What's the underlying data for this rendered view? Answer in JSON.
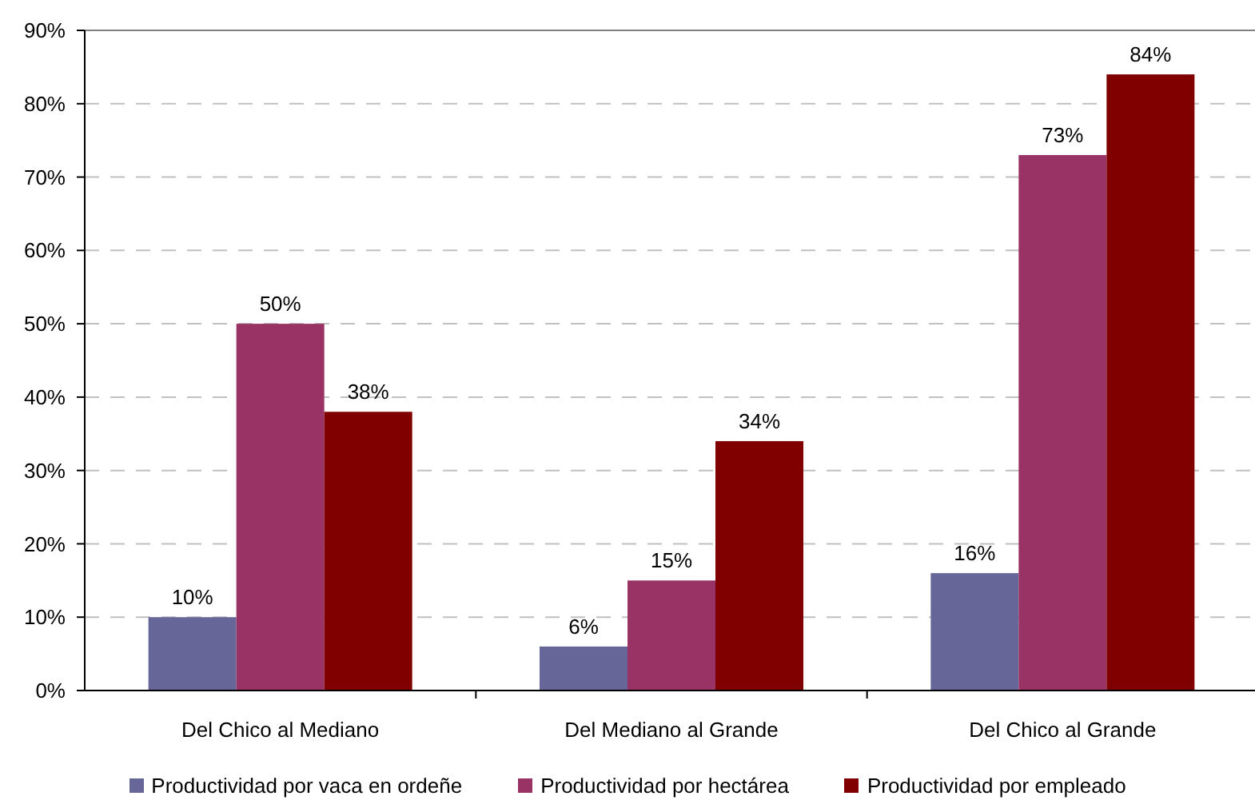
{
  "chart_data": {
    "type": "bar",
    "categories": [
      "Del Chico al Mediano",
      "Del Mediano al Grande",
      "Del Chico al Grande"
    ],
    "series": [
      {
        "name": "Productividad por vaca en ordeñe",
        "color": "#666699",
        "values": [
          10,
          6,
          16
        ],
        "value_labels": [
          "10%",
          "6%",
          "16%"
        ]
      },
      {
        "name": "Productividad por hectárea",
        "color": "#993366",
        "values": [
          50,
          15,
          73
        ],
        "value_labels": [
          "50%",
          "15%",
          "73%"
        ]
      },
      {
        "name": "Productividad por empleado",
        "color": "#800000",
        "values": [
          38,
          34,
          84
        ],
        "value_labels": [
          "38%",
          "34%",
          "84%"
        ]
      }
    ],
    "ylim": [
      0,
      90
    ],
    "yticks": [
      {
        "value": 0,
        "label": "0%"
      },
      {
        "value": 10,
        "label": "10%"
      },
      {
        "value": 20,
        "label": "20%"
      },
      {
        "value": 30,
        "label": "30%"
      },
      {
        "value": 40,
        "label": "40%"
      },
      {
        "value": 50,
        "label": "50%"
      },
      {
        "value": 60,
        "label": "60%"
      },
      {
        "value": 70,
        "label": "70%"
      },
      {
        "value": 80,
        "label": "80%"
      },
      {
        "value": 90,
        "label": "90%"
      }
    ],
    "grid": "y",
    "legend": "bottom"
  }
}
